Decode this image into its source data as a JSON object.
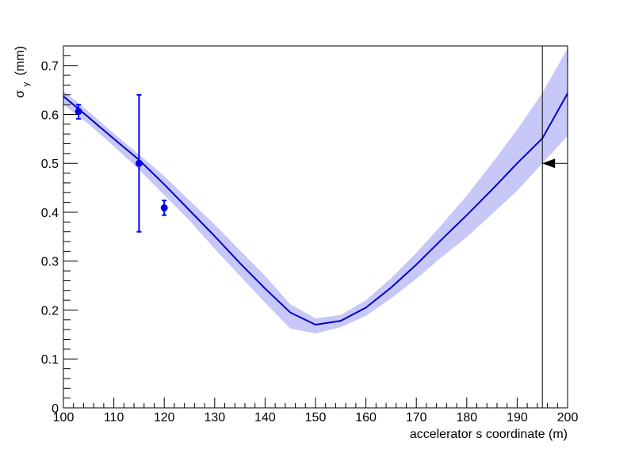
{
  "chart_data": {
    "type": "line",
    "title": "",
    "xlabel": "accelerator s coordinate (m)",
    "ylabel": {
      "symbol": "σ",
      "subscript": "y",
      "unit": "(mm)"
    },
    "xlim": [
      100,
      200
    ],
    "ylim": [
      0,
      0.74
    ],
    "xticks": [
      100,
      110,
      120,
      130,
      140,
      150,
      160,
      170,
      180,
      190,
      200
    ],
    "yticks": [
      0,
      0.1,
      0.2,
      0.3,
      0.4,
      0.5,
      0.6,
      0.7
    ],
    "ytick_labels": [
      "0",
      "0.1",
      "0.2",
      "0.3",
      "0.4",
      "0.5",
      "0.6",
      "0.7"
    ],
    "grid": false,
    "fit_curve": {
      "x": [
        100,
        105,
        110,
        115,
        120,
        125,
        130,
        135,
        140,
        145,
        150,
        155,
        160,
        165,
        170,
        175,
        180,
        185,
        190,
        195,
        200
      ],
      "y": [
        0.637,
        0.594,
        0.55,
        0.507,
        0.457,
        0.404,
        0.351,
        0.296,
        0.244,
        0.195,
        0.17,
        0.178,
        0.205,
        0.246,
        0.293,
        0.344,
        0.394,
        0.446,
        0.5,
        0.551,
        0.643
      ],
      "color": "#0000cc"
    },
    "confidence_band": {
      "x": [
        100,
        105,
        110,
        115,
        120,
        125,
        130,
        135,
        140,
        145,
        150,
        155,
        160,
        165,
        170,
        175,
        180,
        185,
        190,
        195,
        200
      ],
      "upper": [
        0.648,
        0.606,
        0.561,
        0.518,
        0.474,
        0.424,
        0.375,
        0.322,
        0.27,
        0.212,
        0.183,
        0.19,
        0.22,
        0.265,
        0.317,
        0.374,
        0.434,
        0.5,
        0.569,
        0.644,
        0.735
      ],
      "lower": [
        0.62,
        0.58,
        0.535,
        0.487,
        0.435,
        0.383,
        0.325,
        0.27,
        0.215,
        0.162,
        0.152,
        0.165,
        0.188,
        0.224,
        0.264,
        0.308,
        0.349,
        0.396,
        0.444,
        0.5,
        0.556
      ],
      "color": "#c8c8f8"
    },
    "data_points": [
      {
        "x": 103,
        "y": 0.606,
        "yerr_low": 0.591,
        "yerr_high": 0.62
      },
      {
        "x": 115,
        "y": 0.5,
        "yerr_low": 0.36,
        "yerr_high": 0.64
      },
      {
        "x": 120,
        "y": 0.409,
        "yerr_low": 0.394,
        "yerr_high": 0.424
      }
    ],
    "point_color": "#0000ee",
    "vertical_marker": {
      "x": 195,
      "color": "#000000"
    },
    "target_arrow": {
      "y": 0.5,
      "pointing": "left",
      "color": "#000000"
    }
  }
}
